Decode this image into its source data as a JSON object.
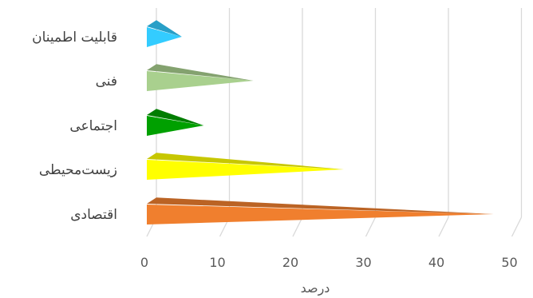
{
  "chart_data": {
    "type": "bar",
    "style": "3d-pyramid",
    "orientation": "horizontal",
    "title": "",
    "xlabel": "درصد",
    "ylabel": "",
    "categories": [
      "اقتصادی",
      "زیست‌محیطی",
      "اجتماعی",
      "فنی",
      "قابلیت اطمینان"
    ],
    "values": [
      47.5,
      27,
      7.8,
      14.6,
      4.8
    ],
    "colors": [
      "#F07F2E",
      "#FFFF00",
      "#00A000",
      "#A9D08E",
      "#33CCFF"
    ],
    "xlim": [
      0,
      50
    ],
    "xticks": [
      "0",
      "10",
      "20",
      "30",
      "40",
      "50"
    ],
    "grid": true,
    "legend": "none"
  }
}
